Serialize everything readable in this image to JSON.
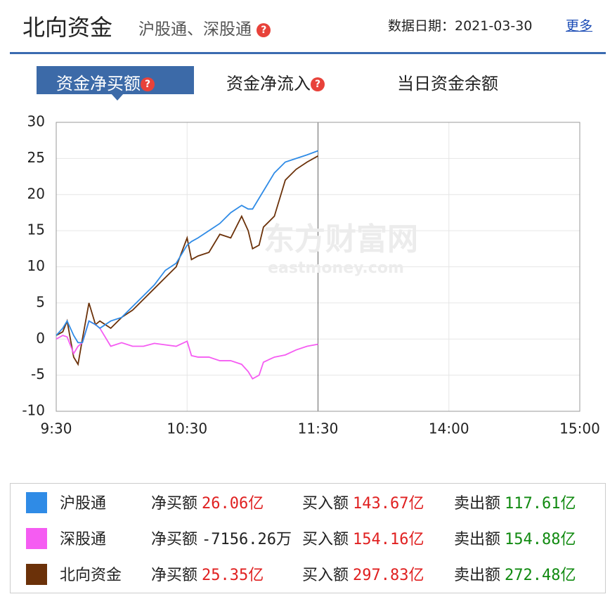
{
  "header": {
    "title": "北向资金",
    "subtitle": "沪股通、深股通",
    "date": "数据日期：2021-03-30",
    "more": "更多"
  },
  "tabs": [
    "资金净买额",
    "资金净流入",
    "当日资金余额"
  ],
  "chart_data": {
    "type": "line",
    "watermark": [
      "东方财富网",
      "eastmoney.com"
    ],
    "x": [
      0,
      3,
      5,
      8,
      10,
      12,
      15,
      18,
      20,
      25,
      30,
      35,
      40,
      45,
      50,
      55,
      60,
      62,
      65,
      70,
      75,
      80,
      85,
      88,
      90,
      93,
      95,
      100,
      105,
      110,
      115,
      120
    ],
    "xlim": [
      0,
      240
    ],
    "xticks": [
      {
        "value": 0,
        "label": "9:30"
      },
      {
        "value": 60,
        "label": "10:30"
      },
      {
        "value": 120,
        "label": "11:30"
      },
      {
        "value": 180,
        "label": "14:00"
      },
      {
        "value": 240,
        "label": "15:00"
      }
    ],
    "ylim": [
      -10,
      30
    ],
    "yticks": [
      -10,
      -5,
      0,
      5,
      10,
      15,
      20,
      25,
      30
    ],
    "grid": true,
    "series": [
      {
        "name": "沪股通",
        "color": "#2f8be6",
        "values": [
          0.5,
          1.5,
          2.5,
          0.5,
          -0.5,
          -0.5,
          2.5,
          2,
          1.5,
          2.5,
          3,
          4.5,
          6,
          7.5,
          9.5,
          10.5,
          13,
          13.5,
          14,
          15,
          16,
          17.5,
          18.5,
          18,
          18,
          19.5,
          20.5,
          23,
          24.5,
          25,
          25.5,
          26.06
        ]
      },
      {
        "name": "深股通",
        "color": "#f55cf2",
        "values": [
          0,
          0.5,
          0.3,
          -2,
          -1,
          -0.5,
          2.5,
          2,
          1.5,
          -1,
          -0.5,
          -1,
          -1,
          -0.6,
          -0.8,
          -1,
          -0.3,
          -2.3,
          -2.5,
          -2.5,
          -3,
          -3,
          -3.5,
          -4.5,
          -5.5,
          -5,
          -3.2,
          -2.5,
          -2.2,
          -1.5,
          -1,
          -0.72
        ]
      },
      {
        "name": "北向资金",
        "color": "#6b3109",
        "values": [
          0.5,
          1,
          2.5,
          -2.5,
          -3.5,
          0,
          5,
          2,
          2.5,
          1.5,
          3,
          4,
          5.5,
          7,
          8.5,
          10,
          14,
          11,
          11.5,
          12,
          14.5,
          14,
          17,
          15,
          12.5,
          13,
          15.5,
          17,
          22,
          23.5,
          24.5,
          25.35
        ]
      }
    ]
  },
  "summary": {
    "rows": [
      {
        "net_label": "净买额",
        "net": "26.06亿",
        "buy_label": "买入额",
        "buy": "143.67亿",
        "sell_label": "卖出额",
        "sell": "117.61亿"
      },
      {
        "net_label": "净买额",
        "net": "-7156.26万",
        "buy_label": "买入额",
        "buy": "154.16亿",
        "sell_label": "卖出额",
        "sell": "154.88亿"
      },
      {
        "net_label": "净买额",
        "net": "25.35亿",
        "buy_label": "买入额",
        "buy": "297.83亿",
        "sell_label": "卖出额",
        "sell": "272.48亿"
      }
    ]
  }
}
